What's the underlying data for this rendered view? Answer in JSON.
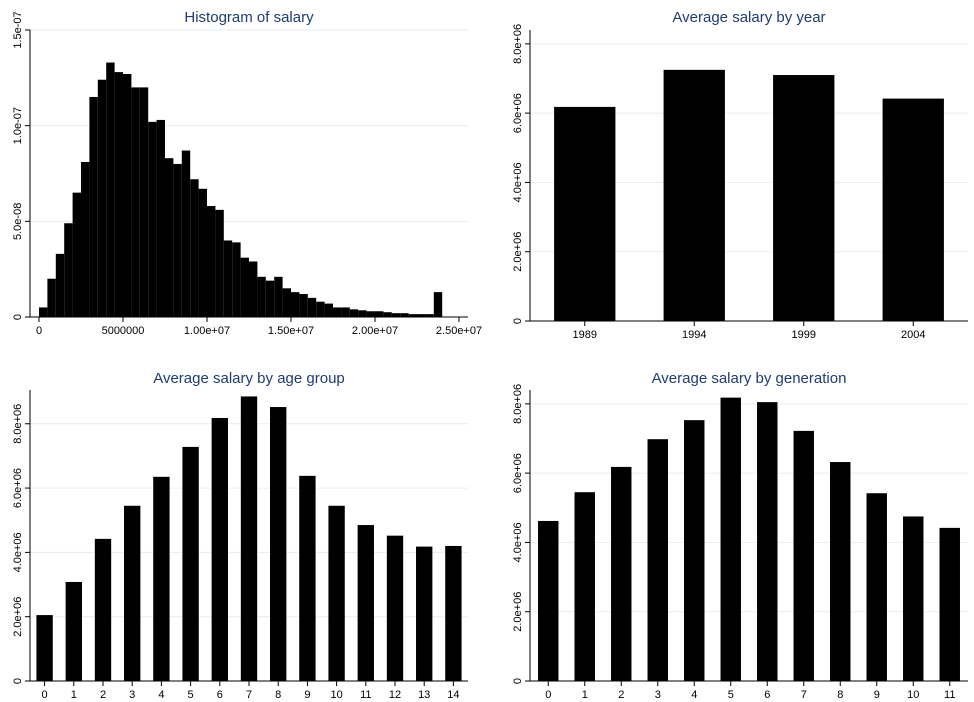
{
  "colors": {
    "bar": "#000000",
    "title": "#1f3b73",
    "grid": "#e6eef0",
    "background": "#ffffff"
  },
  "chart_data": [
    {
      "type": "bar",
      "title": "Histogram of salary",
      "xlabel": "",
      "ylabel": "",
      "bin_start": 0,
      "bin_width": 500000,
      "density": [
        5e-09,
        2e-08,
        3.3e-08,
        4.9e-08,
        6.5e-08,
        8.1e-08,
        1.15e-07,
        1.24e-07,
        1.33e-07,
        1.28e-07,
        1.27e-07,
        1.2e-07,
        1.2e-07,
        1.02e-07,
        1.03e-07,
        8.3e-08,
        8e-08,
        8.7e-08,
        7.2e-08,
        6.7e-08,
        5.8e-08,
        5.6e-08,
        4e-08,
        3.9e-08,
        3.1e-08,
        2.9e-08,
        2.1e-08,
        1.9e-08,
        2.1e-08,
        1.5e-08,
        1.3e-08,
        1.2e-08,
        1e-08,
        8e-09,
        7e-09,
        5e-09,
        5e-09,
        4e-09,
        3.5e-09,
        3e-09,
        3e-09,
        2.5e-09,
        2e-09,
        2e-09,
        1.5e-09,
        1.5e-09,
        1.5e-09,
        1.3e-08
      ],
      "xlim": [
        0,
        25000000
      ],
      "ylim": [
        0,
        1.5e-07
      ],
      "xticks": [
        0,
        5000000,
        10000000,
        15000000,
        20000000,
        25000000
      ],
      "xtick_labels": [
        "0",
        "5000000",
        "1.00e+07",
        "1.50e+07",
        "2.00e+07",
        "2.50e+07"
      ],
      "yticks": [
        0,
        5e-08,
        1e-07,
        1.5e-07
      ],
      "ytick_labels": [
        "0",
        "5.0e-08",
        "1.0e-07",
        "1.5e-07"
      ],
      "grid": true
    },
    {
      "type": "bar",
      "title": "Average salary by year",
      "xlabel": "",
      "ylabel": "",
      "categories": [
        "1989",
        "1994",
        "1999",
        "2004"
      ],
      "values": [
        6180000,
        7250000,
        7100000,
        6420000
      ],
      "ylim": [
        0,
        8400000
      ],
      "yticks": [
        0,
        2000000,
        4000000,
        6000000,
        8000000
      ],
      "ytick_labels": [
        "0",
        "2.0e+06",
        "4.0e+06",
        "6.0e+06",
        "8.0e+06"
      ],
      "grid": true
    },
    {
      "type": "bar",
      "title": "Average salary by age group",
      "xlabel": "",
      "ylabel": "",
      "categories": [
        "0",
        "1",
        "2",
        "3",
        "4",
        "5",
        "6",
        "7",
        "8",
        "9",
        "10",
        "11",
        "12",
        "13",
        "14"
      ],
      "values": [
        2050000,
        3080000,
        4420000,
        5450000,
        6350000,
        7280000,
        8180000,
        8850000,
        8520000,
        6380000,
        5450000,
        4850000,
        4520000,
        4180000,
        4200000
      ],
      "ylim": [
        0,
        9050000
      ],
      "yticks": [
        0,
        2000000,
        4000000,
        6000000,
        8000000
      ],
      "ytick_labels": [
        "0",
        "2.0e+06",
        "4.0e+06",
        "6.0e+06",
        "8.0e+06"
      ],
      "grid": true
    },
    {
      "type": "bar",
      "title": "Average salary by generation",
      "xlabel": "",
      "ylabel": "",
      "categories": [
        "0",
        "1",
        "2",
        "3",
        "4",
        "5",
        "6",
        "7",
        "8",
        "9",
        "10",
        "11"
      ],
      "values": [
        4620000,
        5450000,
        6180000,
        6980000,
        7530000,
        8180000,
        8050000,
        7220000,
        6320000,
        5420000,
        4750000,
        4420000
      ],
      "ylim": [
        0,
        8400000
      ],
      "yticks": [
        0,
        2000000,
        4000000,
        6000000,
        8000000
      ],
      "ytick_labels": [
        "0",
        "2.0e+06",
        "4.0e+06",
        "6.0e+06",
        "8.0e+06"
      ],
      "grid": true
    }
  ]
}
